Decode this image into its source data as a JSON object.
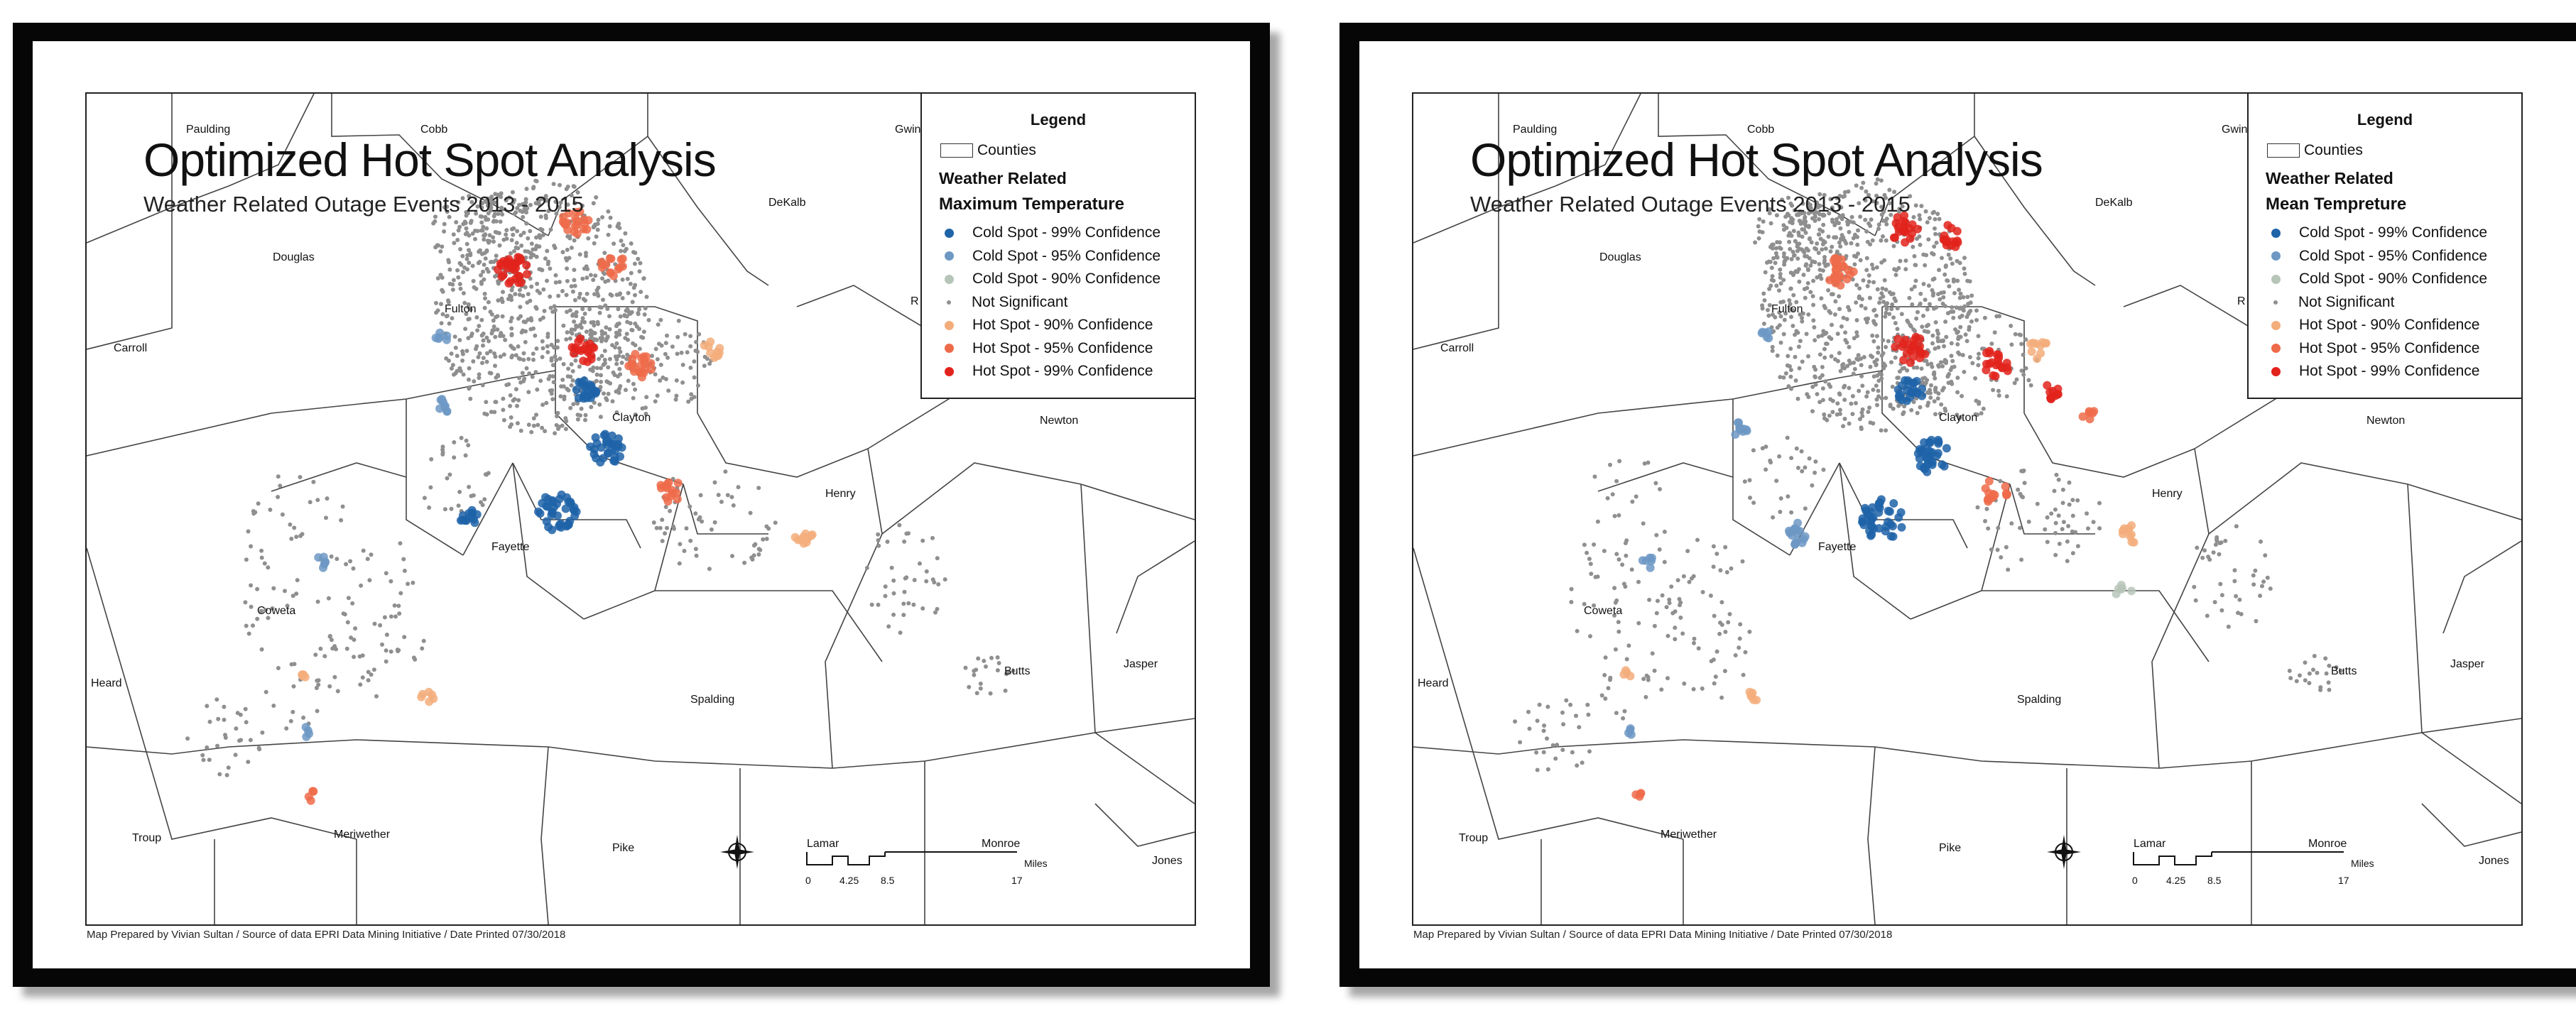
{
  "maps": [
    {
      "title": "Optimized Hot Spot Analysis",
      "subtitle": "Weather Related Outage Events 2013 - 2015",
      "legend": {
        "heading": "Legend",
        "counties_label": "Counties",
        "group_label": "Weather Related",
        "field_label": "Maximum Temperature",
        "items": [
          {
            "label": "Cold Spot - 99% Confidence",
            "color": "#1f63a8"
          },
          {
            "label": "Cold Spot - 95% Confidence",
            "color": "#6d98c4"
          },
          {
            "label": "Cold Spot - 90% Confidence",
            "color": "#b7c5b8"
          },
          {
            "label": "Not Significant",
            "color": "#8f8f8f"
          },
          {
            "label": "Hot Spot - 90% Confidence",
            "color": "#f3ad7b"
          },
          {
            "label": "Hot Spot - 95% Confidence",
            "color": "#ee6b4a"
          },
          {
            "label": "Hot Spot - 99% Confidence",
            "color": "#e2231c"
          }
        ]
      },
      "county_labels": [
        "Paulding",
        "Cobb",
        "Gwin",
        "DeKalb",
        "Douglas",
        "Fulton",
        "R",
        "Carroll",
        "Clayton",
        "Newton",
        "Henry",
        "Fayette",
        "Coweta",
        "Heard",
        "Spalding",
        "Butts",
        "Jasper",
        "Troup",
        "Meriwether",
        "Pike",
        "Lamar",
        "Monroe",
        "Jones"
      ],
      "scale_bar": {
        "ticks": [
          "0",
          "4.25",
          "8.5",
          "17"
        ],
        "unit": "Miles"
      },
      "footer": "Map Prepared by Vivian Sultan / Source of data EPRI Data Mining Initiative / Date Printed 07/30/2018"
    },
    {
      "title": "Optimized Hot Spot Analysis",
      "subtitle": "Weather Related Outage Events 2013 - 2015",
      "legend": {
        "heading": "Legend",
        "counties_label": "Counties",
        "group_label": "Weather Related",
        "field_label": "Mean Tempreture",
        "items": [
          {
            "label": "Cold Spot - 99% Confidence",
            "color": "#1f63a8"
          },
          {
            "label": "Cold Spot - 95% Confidence",
            "color": "#6d98c4"
          },
          {
            "label": "Cold Spot - 90% Confidence",
            "color": "#b7c5b8"
          },
          {
            "label": "Not Significant",
            "color": "#8f8f8f"
          },
          {
            "label": "Hot Spot - 90% Confidence",
            "color": "#f3ad7b"
          },
          {
            "label": "Hot Spot - 95% Confidence",
            "color": "#ee6b4a"
          },
          {
            "label": "Hot Spot - 99% Confidence",
            "color": "#e2231c"
          }
        ]
      },
      "county_labels": [
        "Paulding",
        "Cobb",
        "Gwin",
        "DeKalb",
        "Douglas",
        "Fulton",
        "R",
        "Carroll",
        "Clayton",
        "Newton",
        "Henry",
        "Fayette",
        "Coweta",
        "Heard",
        "Spalding",
        "Butts",
        "Jasper",
        "Troup",
        "Meriwether",
        "Pike",
        "Lamar",
        "Monroe",
        "Jones"
      ],
      "scale_bar": {
        "ticks": [
          "0",
          "4.25",
          "8.5",
          "17"
        ],
        "unit": "Miles"
      },
      "footer": "Map Prepared by Vivian Sultan / Source of data EPRI Data Mining Initiative / Date Printed 07/30/2018"
    }
  ]
}
